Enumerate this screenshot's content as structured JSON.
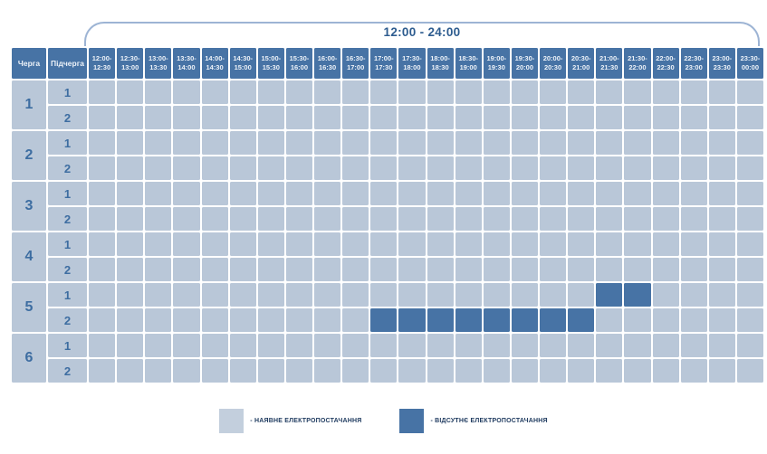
{
  "chart_data": {
    "type": "heatmap",
    "title": "12:00 - 24:00",
    "x_axis_group_label": "12:00 - 24:00",
    "column_headers": {
      "queue": "Черга",
      "subqueue": "Підчерга"
    },
    "time_slots": [
      "12:00-12:30",
      "12:30-13:00",
      "13:00-13:30",
      "13:30-14:00",
      "14:00-14:30",
      "14:30-15:00",
      "15:00-15:30",
      "15:30-16:00",
      "16:00-16:30",
      "16:30-17:00",
      "17:00-17:30",
      "17:30-18:00",
      "18:00-18:30",
      "18:30-19:00",
      "19:00-19:30",
      "19:30-20:00",
      "20:00-20:30",
      "20:30-21:00",
      "21:00-21:30",
      "21:30-22:00",
      "22:00-22:30",
      "22:30-23:00",
      "23:00-23:30",
      "23:30-00:00"
    ],
    "queues": [
      {
        "label": "1",
        "subqueues": [
          {
            "label": "1",
            "outage_slots": []
          },
          {
            "label": "2",
            "outage_slots": []
          }
        ]
      },
      {
        "label": "2",
        "subqueues": [
          {
            "label": "1",
            "outage_slots": []
          },
          {
            "label": "2",
            "outage_slots": []
          }
        ]
      },
      {
        "label": "3",
        "subqueues": [
          {
            "label": "1",
            "outage_slots": []
          },
          {
            "label": "2",
            "outage_slots": []
          }
        ]
      },
      {
        "label": "4",
        "subqueues": [
          {
            "label": "1",
            "outage_slots": []
          },
          {
            "label": "2",
            "outage_slots": []
          }
        ]
      },
      {
        "label": "5",
        "subqueues": [
          {
            "label": "1",
            "outage_slots": [
              "21:00-21:30",
              "21:30-22:00"
            ]
          },
          {
            "label": "2",
            "outage_slots": [
              "17:00-17:30",
              "17:30-18:00",
              "18:00-18:30",
              "18:30-19:00",
              "19:00-19:30",
              "19:30-20:00",
              "20:00-20:30",
              "20:30-21:00"
            ]
          }
        ]
      },
      {
        "label": "6",
        "subqueues": [
          {
            "label": "1",
            "outage_slots": []
          },
          {
            "label": "2",
            "outage_slots": []
          }
        ]
      }
    ]
  },
  "legend": [
    {
      "label": "- НАЯВНЕ ЕЛЕКТРОПОСТАЧАННЯ",
      "color": "#c3cfdd",
      "state": "available"
    },
    {
      "label": "- ВІДСУТНЄ ЕЛЕКТРОПОСТАЧАННЯ",
      "color": "#4773a5",
      "state": "outage"
    }
  ],
  "colors": {
    "available_cell": "#b9c7d8",
    "outage_cell": "#4773a5",
    "header_bg": "#4773a5",
    "header_text": "#eef3f9",
    "number_text": "#3d6da1",
    "title_text": "#2d5c8f",
    "bracket_line": "#9db4d4"
  }
}
